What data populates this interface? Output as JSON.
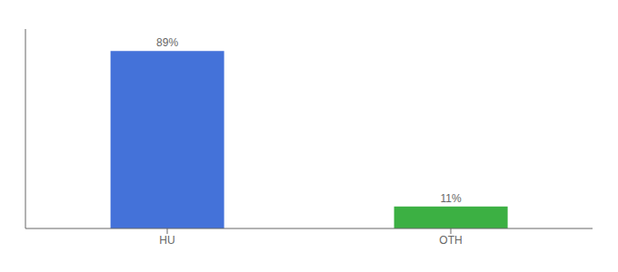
{
  "chart_data": {
    "type": "bar",
    "categories": [
      "HU",
      "OTH"
    ],
    "values": [
      89,
      11
    ],
    "value_labels": [
      "89%",
      "11%"
    ],
    "colors": [
      "#4472d9",
      "#3cb043"
    ],
    "ylim": [
      0,
      100
    ],
    "data_labels": true,
    "tick_labels": "x",
    "grid": false
  }
}
